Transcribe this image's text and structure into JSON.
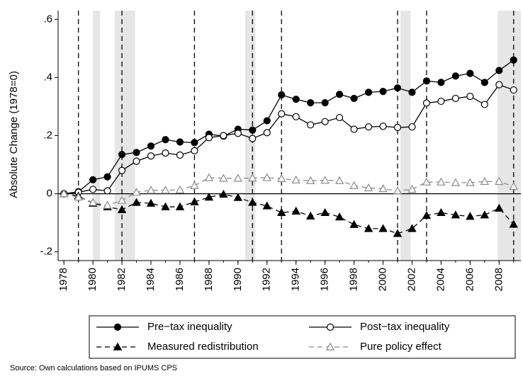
{
  "chart_data": {
    "type": "line",
    "y_label": "Absolute Change (1978=0)",
    "source": "Source: Own calculations based on IPUMS CPS",
    "x": [
      1978,
      1979,
      1980,
      1981,
      1982,
      1983,
      1984,
      1985,
      1986,
      1987,
      1988,
      1989,
      1990,
      1991,
      1992,
      1993,
      1994,
      1995,
      1996,
      1997,
      1998,
      1999,
      2000,
      2001,
      2002,
      2003,
      2004,
      2005,
      2006,
      2007,
      2008,
      2009
    ],
    "series": [
      {
        "name": "Pre−tax inequality",
        "color": "#000000",
        "marker": "filled-circle",
        "dashed": false,
        "values": [
          0,
          0.007,
          0.048,
          0.058,
          0.135,
          0.142,
          0.164,
          0.186,
          0.178,
          0.176,
          0.205,
          0.198,
          0.222,
          0.219,
          0.251,
          0.34,
          0.325,
          0.313,
          0.313,
          0.342,
          0.328,
          0.349,
          0.352,
          0.364,
          0.349,
          0.388,
          0.383,
          0.405,
          0.414,
          0.383,
          0.424,
          0.46
        ]
      },
      {
        "name": "Post−tax inequality",
        "color": "#000000",
        "marker": "hollow-circle",
        "dashed": false,
        "values": [
          0,
          0.005,
          0.015,
          0.01,
          0.08,
          0.112,
          0.13,
          0.14,
          0.133,
          0.148,
          0.193,
          0.2,
          0.208,
          0.19,
          0.21,
          0.275,
          0.265,
          0.237,
          0.248,
          0.262,
          0.222,
          0.23,
          0.232,
          0.228,
          0.23,
          0.312,
          0.318,
          0.328,
          0.335,
          0.307,
          0.375,
          0.357
        ]
      },
      {
        "name": "Measured redistribution",
        "color": "#000000",
        "marker": "filled-triangle",
        "dashed": true,
        "values": [
          0,
          -0.008,
          -0.033,
          -0.045,
          -0.055,
          -0.03,
          -0.033,
          -0.045,
          -0.045,
          -0.028,
          -0.012,
          -0.002,
          -0.013,
          -0.03,
          -0.042,
          -0.065,
          -0.06,
          -0.077,
          -0.065,
          -0.08,
          -0.106,
          -0.12,
          -0.12,
          -0.137,
          -0.12,
          -0.075,
          -0.065,
          -0.073,
          -0.078,
          -0.073,
          -0.05,
          -0.105
        ]
      },
      {
        "name": "Pure policy effect",
        "color": "#8c8c8c",
        "marker": "hollow-triangle",
        "dashed": true,
        "values": [
          0,
          -0.012,
          -0.03,
          -0.04,
          -0.023,
          0.005,
          0.012,
          0.012,
          0.013,
          0.028,
          0.055,
          0.053,
          0.053,
          0.054,
          0.055,
          0.052,
          0.047,
          0.045,
          0.046,
          0.045,
          0.028,
          0.02,
          0.017,
          0.01,
          0.015,
          0.04,
          0.04,
          0.038,
          0.038,
          0.042,
          0.042,
          0.025
        ]
      }
    ],
    "xlim": [
      1977.6,
      2009.5
    ],
    "ylim": [
      -0.23,
      0.63
    ],
    "xticks": [
      1978,
      1980,
      1982,
      1984,
      1986,
      1988,
      1990,
      1992,
      1994,
      1996,
      1998,
      2000,
      2002,
      2004,
      2006,
      2008
    ],
    "yticks": [
      {
        "value": -0.2,
        "label": "-.2"
      },
      0,
      {
        "value": 0.2,
        "label": ".2"
      },
      {
        "value": 0.4,
        "label": ".4"
      },
      {
        "value": 0.6,
        "label": ".6"
      }
    ],
    "vlines": [
      1979,
      1982,
      1987,
      1991,
      1993,
      2001,
      2003,
      2009
    ],
    "recession_bands": [
      [
        1980.0,
        1980.5
      ],
      [
        1981.5,
        1982.9
      ],
      [
        1990.5,
        1991.2
      ],
      [
        2001.2,
        2001.9
      ],
      [
        2007.9,
        2009.5
      ]
    ],
    "legend": "bottom"
  }
}
